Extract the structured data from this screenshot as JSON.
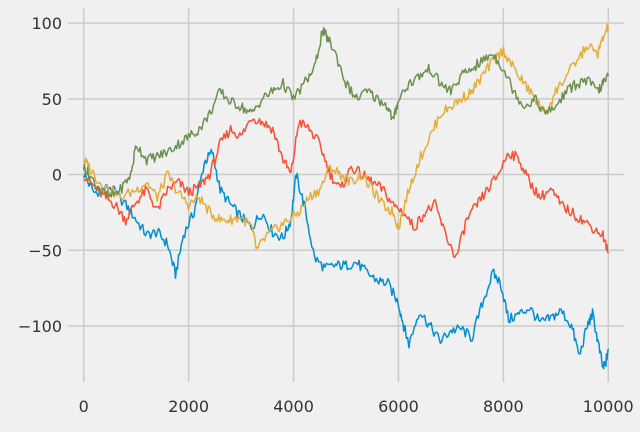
{
  "chart_data": {
    "type": "line",
    "title": "",
    "xlabel": "",
    "ylabel": "",
    "grid": true,
    "legend": "none",
    "xlim": [
      -300,
      10300
    ],
    "ylim": [
      -137,
      110
    ],
    "x_ticks": [
      0,
      2000,
      4000,
      6000,
      8000,
      10000
    ],
    "y_ticks": [
      -100,
      -50,
      0,
      50,
      100
    ],
    "x_tick_labels": [
      "0",
      "2000",
      "4000",
      "6000",
      "8000",
      "10000"
    ],
    "y_tick_labels": [
      "−100",
      "−50",
      "0",
      "50",
      "100"
    ],
    "noise_amplitude": 3.5,
    "series": [
      {
        "color": "#008fd5",
        "x": [
          0,
          200,
          500,
          800,
          1000,
          1200,
          1400,
          1600,
          1750,
          1900,
          2100,
          2300,
          2450,
          2600,
          2800,
          3000,
          3200,
          3400,
          3600,
          3800,
          3950,
          4050,
          4200,
          4400,
          4600,
          4800,
          5000,
          5200,
          5400,
          5600,
          5800,
          6000,
          6100,
          6200,
          6400,
          6600,
          6800,
          7000,
          7200,
          7400,
          7600,
          7800,
          7950,
          8100,
          8300,
          8500,
          8700,
          8900,
          9100,
          9300,
          9450,
          9600,
          9700,
          9800,
          9900,
          9950,
          10000
        ],
        "y": [
          0,
          -12,
          -8,
          -20,
          -30,
          -40,
          -38,
          -46,
          -66,
          -40,
          -25,
          8,
          15,
          -10,
          -20,
          -28,
          -35,
          -25,
          -38,
          -42,
          -30,
          0,
          -20,
          -55,
          -62,
          -60,
          -60,
          -58,
          -65,
          -70,
          -72,
          -85,
          -100,
          -112,
          -90,
          -100,
          -110,
          -103,
          -102,
          -108,
          -85,
          -65,
          -72,
          -96,
          -92,
          -88,
          -98,
          -95,
          -90,
          -100,
          -120,
          -100,
          -92,
          -110,
          -128,
          -125,
          -115
        ]
      },
      {
        "color": "#fc4f30",
        "x": [
          0,
          200,
          400,
          600,
          800,
          1000,
          1200,
          1400,
          1600,
          1800,
          2000,
          2200,
          2400,
          2600,
          2800,
          3000,
          3200,
          3400,
          3600,
          3800,
          3950,
          4100,
          4300,
          4500,
          4700,
          4900,
          5100,
          5300,
          5500,
          5700,
          5900,
          6100,
          6300,
          6500,
          6700,
          6900,
          7100,
          7300,
          7500,
          7700,
          7900,
          8100,
          8300,
          8500,
          8700,
          8900,
          9100,
          9300,
          9500,
          9700,
          9900,
          10000
        ],
        "y": [
          0,
          -8,
          -15,
          -20,
          -30,
          -18,
          -10,
          -24,
          -10,
          -5,
          -12,
          -8,
          0,
          20,
          30,
          25,
          38,
          35,
          30,
          10,
          0,
          35,
          30,
          20,
          0,
          -10,
          5,
          0,
          -5,
          -10,
          -20,
          -25,
          -35,
          -25,
          -20,
          -40,
          -55,
          -30,
          -20,
          -10,
          0,
          15,
          10,
          -5,
          -15,
          -10,
          -20,
          -25,
          -30,
          -35,
          -40,
          -52
        ]
      },
      {
        "color": "#e5ae38",
        "x": [
          0,
          100,
          300,
          500,
          700,
          1000,
          1200,
          1400,
          1600,
          1800,
          2000,
          2200,
          2400,
          2600,
          2800,
          3000,
          3200,
          3300,
          3500,
          3700,
          3900,
          4100,
          4300,
          4500,
          4700,
          4900,
          5100,
          5300,
          5500,
          5700,
          5900,
          6000,
          6200,
          6400,
          6600,
          6800,
          7000,
          7200,
          7400,
          7600,
          7800,
          8000,
          8200,
          8400,
          8600,
          8800,
          9000,
          9200,
          9400,
          9600,
          9800,
          9900,
          10000
        ],
        "y": [
          10,
          5,
          -5,
          -10,
          -15,
          -10,
          -5,
          -15,
          0,
          -12,
          -20,
          -15,
          -25,
          -30,
          -30,
          -28,
          -35,
          -50,
          -40,
          -35,
          -30,
          -25,
          -15,
          -10,
          5,
          0,
          -5,
          0,
          -10,
          -20,
          -25,
          -35,
          -10,
          10,
          25,
          40,
          45,
          50,
          55,
          65,
          75,
          82,
          70,
          60,
          50,
          40,
          55,
          65,
          75,
          85,
          80,
          90,
          98
        ]
      },
      {
        "color": "#6d904f",
        "x": [
          0,
          100,
          300,
          500,
          700,
          900,
          1000,
          1200,
          1400,
          1600,
          1800,
          2000,
          2200,
          2400,
          2600,
          2800,
          3000,
          3200,
          3400,
          3600,
          3800,
          4000,
          4200,
          4400,
          4550,
          4650,
          4800,
          5000,
          5200,
          5400,
          5600,
          5800,
          5900,
          6000,
          6200,
          6400,
          6600,
          6800,
          7000,
          7200,
          7400,
          7600,
          7800,
          8000,
          8200,
          8400,
          8600,
          8800,
          9000,
          9200,
          9400,
          9600,
          9800,
          9900,
          10000
        ],
        "y": [
          5,
          0,
          -10,
          -15,
          -10,
          0,
          20,
          10,
          12,
          15,
          20,
          25,
          30,
          40,
          55,
          48,
          45,
          40,
          50,
          55,
          60,
          50,
          60,
          70,
          95,
          90,
          80,
          60,
          50,
          55,
          50,
          45,
          35,
          50,
          60,
          65,
          70,
          60,
          55,
          65,
          70,
          75,
          80,
          70,
          55,
          45,
          50,
          40,
          45,
          55,
          60,
          62,
          55,
          60,
          65
        ]
      }
    ]
  }
}
